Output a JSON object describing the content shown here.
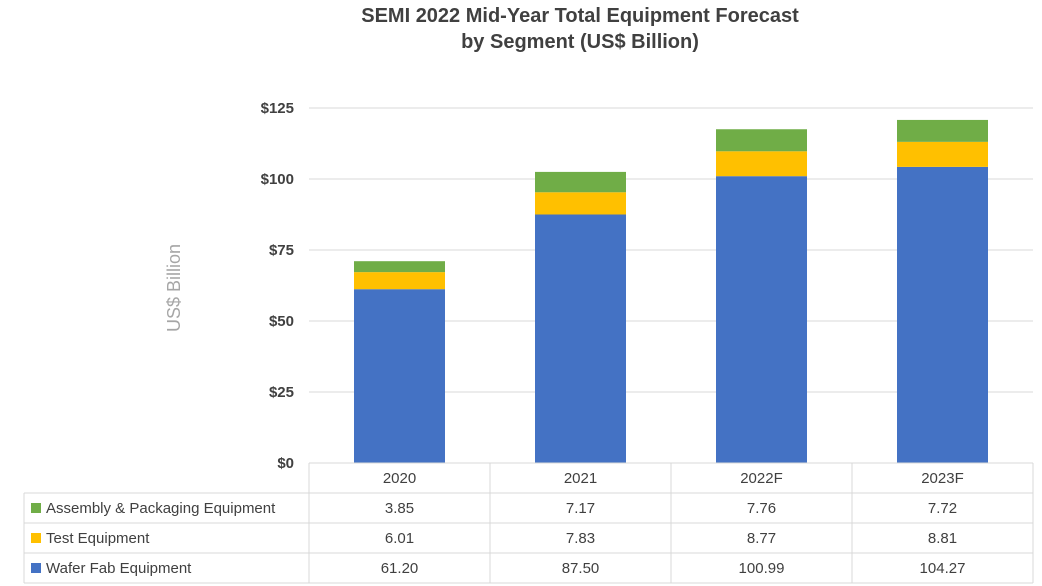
{
  "chart_data": {
    "type": "bar",
    "stacked": true,
    "title": "SEMI 2022 Mid-Year Total Equipment Forecast",
    "subtitle": "by Segment (US$ Billion)",
    "ylabel": "US$ Billion",
    "xlabel": "",
    "ylim": [
      0,
      125
    ],
    "yticks": [
      0,
      25,
      50,
      75,
      100,
      125
    ],
    "ytick_labels": [
      "$0",
      "$25",
      "$50",
      "$75",
      "$100",
      "$125"
    ],
    "grid": true,
    "legend": "data-table",
    "categories": [
      "2020",
      "2021",
      "2022F",
      "2023F"
    ],
    "series": [
      {
        "name": "Wafer Fab Equipment",
        "color": "#4472c4",
        "values": [
          61.2,
          87.5,
          100.99,
          104.27
        ],
        "labels": [
          "61.20",
          "87.50",
          "100.99",
          "104.27"
        ]
      },
      {
        "name": "Test Equipment",
        "color": "#ffc000",
        "values": [
          6.01,
          7.83,
          8.77,
          8.81
        ],
        "labels": [
          "6.01",
          "7.83",
          "8.77",
          "8.81"
        ]
      },
      {
        "name": "Assembly & Packaging Equipment",
        "color": "#70ad47",
        "values": [
          3.85,
          7.17,
          7.76,
          7.72
        ],
        "labels": [
          "3.85",
          "7.17",
          "7.76",
          "7.72"
        ]
      }
    ],
    "table_row_order": [
      "Assembly & Packaging Equipment",
      "Test Equipment",
      "Wafer Fab Equipment"
    ]
  }
}
